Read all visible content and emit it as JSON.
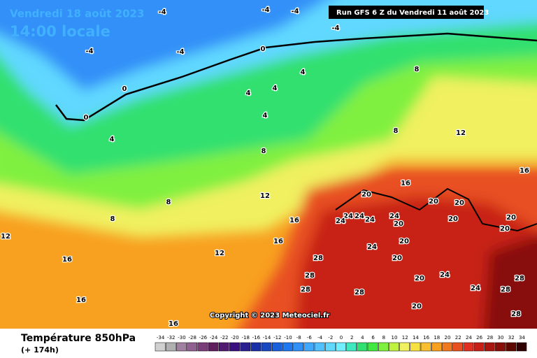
{
  "header": {
    "date": "Vendredi 18 août 2023",
    "time": "14:00 locale",
    "run": "Run GFS 6 Z du Vendredi 11 août 2023"
  },
  "copyright": "Copyright © 2023 Meteociel.fr",
  "footer": {
    "title": "Température 850hPa",
    "lead": "(+ 174h)"
  },
  "legend": {
    "values": [
      -34,
      -32,
      -30,
      -28,
      -26,
      -24,
      -22,
      -20,
      -18,
      -16,
      -14,
      -12,
      -10,
      -8,
      -6,
      -4,
      -2,
      0,
      2,
      4,
      6,
      8,
      10,
      12,
      14,
      16,
      18,
      20,
      22,
      24,
      26,
      28,
      30,
      32,
      34
    ],
    "colors": [
      "#d0d0d0",
      "#b0b0b0",
      "#a080a0",
      "#906090",
      "#7a3f7a",
      "#602060",
      "#501a70",
      "#3a1080",
      "#2a2090",
      "#1a30a8",
      "#1848c0",
      "#1a60d8",
      "#2078f0",
      "#3090f8",
      "#40a8ff",
      "#50c0ff",
      "#60d8ff",
      "#70f0ff",
      "#40e8c0",
      "#30e070",
      "#40e840",
      "#80f040",
      "#c0f040",
      "#f0f060",
      "#f8e040",
      "#f8c030",
      "#f8a020",
      "#f07820",
      "#e85020",
      "#e03020",
      "#c82018",
      "#a81810",
      "#881008",
      "#600800",
      "#300000"
    ]
  },
  "contour_labels": [
    -4,
    -4,
    -4,
    -4,
    -4,
    -4,
    0,
    0,
    0,
    4,
    4,
    4,
    4,
    4,
    8,
    8,
    8,
    8,
    8,
    12,
    12,
    12,
    12,
    16,
    16,
    16,
    16,
    16,
    16,
    16,
    20,
    20,
    20,
    20,
    20,
    20,
    20,
    20,
    20,
    20,
    20,
    24,
    24,
    24,
    24,
    24,
    24,
    24,
    24,
    28,
    28,
    28,
    28,
    28,
    28,
    28
  ]
}
